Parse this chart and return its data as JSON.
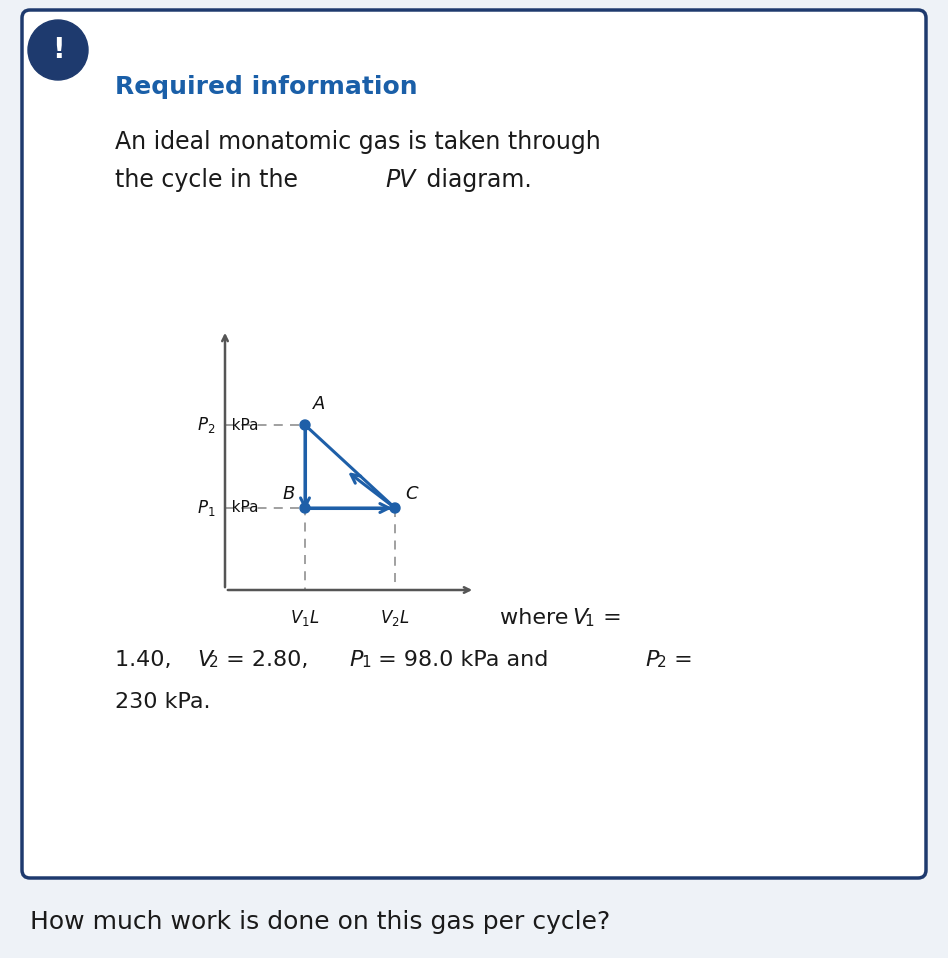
{
  "bg_color": "#eef2f7",
  "card_bg": "#ffffff",
  "card_border_color": "#1e3a6e",
  "exclamation_bg": "#1e3a6e",
  "exclamation_color": "#ffffff",
  "header_color": "#1a5fa8",
  "header_text": "Required information",
  "body_line1": "An ideal monatomic gas is taken through",
  "body_line2": "the cycle in the ",
  "body_line2_italic": "PV",
  "body_line2_end": " diagram.",
  "where_text": "where ",
  "where_V1": "V",
  "where_eq": " =",
  "val_line1a": "1.40,  ",
  "val_V2": "V",
  "val_line1b": " = 2.80,  ",
  "val_P1": "P",
  "val_line1c": " = 98.0 kPa and ",
  "val_P2b": "P",
  "val_line1d": " =",
  "val_line2": "230 kPa.",
  "bottom_text": "How much work is done on this gas per cycle?",
  "diagram_color": "#1e5fa8",
  "axis_color": "#555555",
  "dash_color": "#999999",
  "label_A": "A",
  "label_B": "B",
  "label_C": "C",
  "label_P2": "P",
  "label_P1": "P",
  "label_V1": "V",
  "label_V2": "V"
}
